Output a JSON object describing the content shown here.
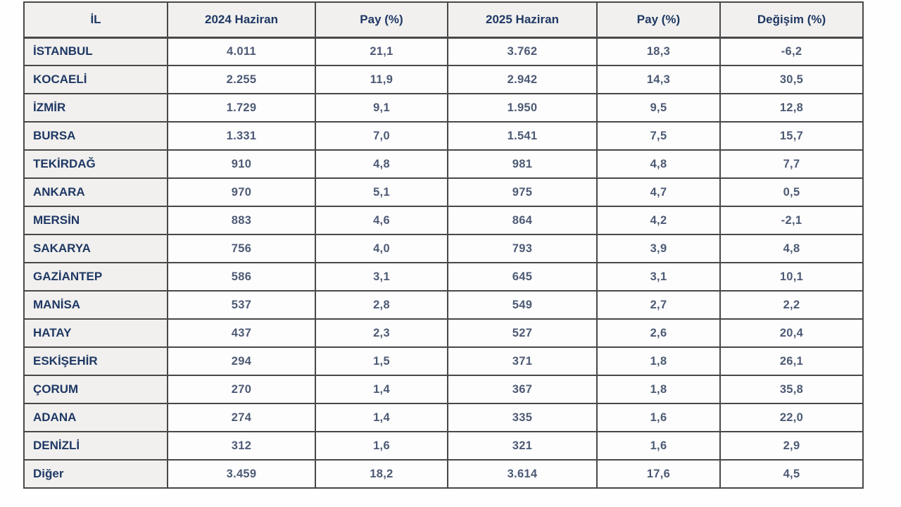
{
  "chart_data": {
    "type": "table",
    "title": "",
    "columns": [
      "İL",
      "2024 Haziran",
      "Pay (%)",
      "2025 Haziran",
      "Pay (%)",
      "Değişim (%)"
    ],
    "rows": [
      [
        "İSTANBUL",
        "4.011",
        "21,1",
        "3.762",
        "18,3",
        "-6,2"
      ],
      [
        "KOCAELİ",
        "2.255",
        "11,9",
        "2.942",
        "14,3",
        "30,5"
      ],
      [
        "İZMİR",
        "1.729",
        "9,1",
        "1.950",
        "9,5",
        "12,8"
      ],
      [
        "BURSA",
        "1.331",
        "7,0",
        "1.541",
        "7,5",
        "15,7"
      ],
      [
        "TEKİRDAĞ",
        "910",
        "4,8",
        "981",
        "4,8",
        "7,7"
      ],
      [
        "ANKARA",
        "970",
        "5,1",
        "975",
        "4,7",
        "0,5"
      ],
      [
        "MERSİN",
        "883",
        "4,6",
        "864",
        "4,2",
        "-2,1"
      ],
      [
        "SAKARYA",
        "756",
        "4,0",
        "793",
        "3,9",
        "4,8"
      ],
      [
        "GAZİANTEP",
        "586",
        "3,1",
        "645",
        "3,1",
        "10,1"
      ],
      [
        "MANİSA",
        "537",
        "2,8",
        "549",
        "2,7",
        "2,2"
      ],
      [
        "HATAY",
        "437",
        "2,3",
        "527",
        "2,6",
        "20,4"
      ],
      [
        "ESKİŞEHİR",
        "294",
        "1,5",
        "371",
        "1,8",
        "26,1"
      ],
      [
        "ÇORUM",
        "270",
        "1,4",
        "367",
        "1,8",
        "35,8"
      ],
      [
        "ADANA",
        "274",
        "1,4",
        "335",
        "1,6",
        "22,0"
      ],
      [
        "DENİZLİ",
        "312",
        "1,6",
        "321",
        "1,6",
        "2,9"
      ],
      [
        "Diğer",
        "3.459",
        "18,2",
        "3.614",
        "17,6",
        "4,5"
      ]
    ]
  },
  "colors": {
    "border": "#484848",
    "header_text": "#1f3864",
    "value_text": "#4d5a75",
    "label_bg": "#f1f0ee",
    "cell_bg": "#fdfdfd",
    "page_bg": "#fefefe"
  }
}
